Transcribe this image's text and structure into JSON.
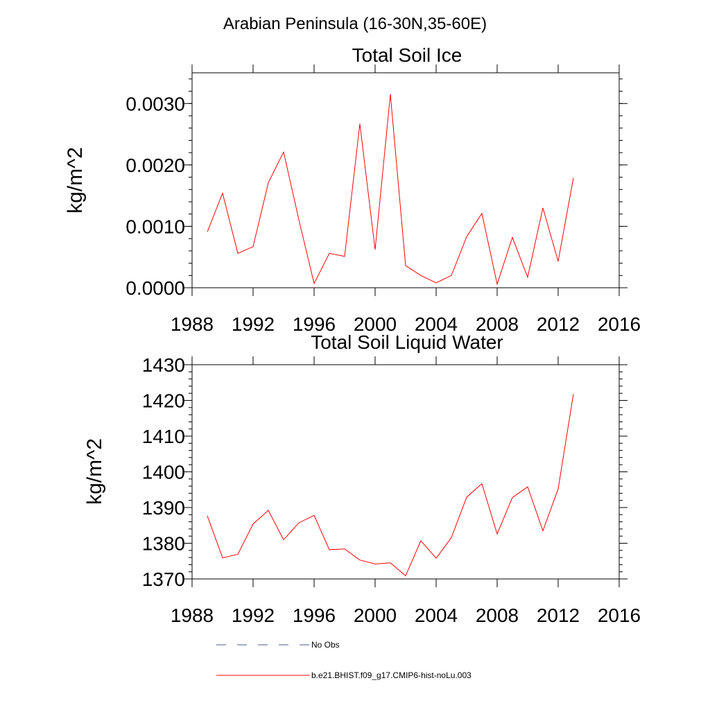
{
  "page_title": "Arabian Peninsula (16-30N,35-60E)",
  "colors": {
    "series": "#ff0000",
    "obs": "#4a5a8a",
    "axis": "#000000"
  },
  "chart_data": [
    {
      "type": "line",
      "title": "Total Soil Ice",
      "ylabel": "kg/m^2",
      "xlim": [
        1988,
        2016
      ],
      "ylim": [
        0,
        0.0035
      ],
      "xticks": [
        1988,
        1992,
        1996,
        2000,
        2004,
        2008,
        2012,
        2016
      ],
      "yticks": [
        0,
        0.001,
        0.002,
        0.003
      ],
      "ytick_labels": [
        "0.0000",
        "0.0010",
        "0.0020",
        "0.0030"
      ],
      "x": [
        1989,
        1990,
        1991,
        1992,
        1993,
        1994,
        1995,
        1996,
        1997,
        1998,
        1999,
        2000,
        2001,
        2002,
        2003,
        2004,
        2005,
        2006,
        2007,
        2008,
        2009,
        2010,
        2011,
        2012,
        2013
      ],
      "series": [
        {
          "name": "b.e21.BHIST.f09_g17.CMIP6-hist-noLu.003",
          "values": [
            0.00091,
            0.00154,
            0.00056,
            0.00067,
            0.00171,
            0.00221,
            0.00111,
            7e-05,
            0.00056,
            0.00051,
            0.00267,
            0.00062,
            0.00315,
            0.00036,
            0.0002,
            8e-05,
            0.0002,
            0.00083,
            0.00121,
            6e-05,
            0.00082,
            0.00017,
            0.0013,
            0.00043,
            0.00179
          ]
        }
      ]
    },
    {
      "type": "line",
      "title": "Total Soil Liquid Water",
      "ylabel": "kg/m^2",
      "xlim": [
        1988,
        2016
      ],
      "ylim": [
        1370,
        1430
      ],
      "xticks": [
        1988,
        1992,
        1996,
        2000,
        2004,
        2008,
        2012,
        2016
      ],
      "yticks": [
        1370,
        1380,
        1390,
        1400,
        1410,
        1420,
        1430
      ],
      "ytick_labels": [
        "1370",
        "1380",
        "1390",
        "1400",
        "1410",
        "1420",
        "1430"
      ],
      "x": [
        1989,
        1990,
        1991,
        1992,
        1993,
        1994,
        1995,
        1996,
        1997,
        1998,
        1999,
        2000,
        2001,
        2002,
        2003,
        2004,
        2005,
        2006,
        2007,
        2008,
        2009,
        2010,
        2011,
        2012,
        2013
      ],
      "series": [
        {
          "name": "b.e21.BHIST.f09_g17.CMIP6-hist-noLu.003",
          "values": [
            1387.7,
            1375.9,
            1376.9,
            1385.4,
            1389.2,
            1381.0,
            1385.7,
            1387.8,
            1378.2,
            1378.4,
            1375.3,
            1374.2,
            1374.5,
            1370.9,
            1380.7,
            1375.8,
            1381.6,
            1392.9,
            1396.7,
            1382.6,
            1392.8,
            1395.8,
            1383.5,
            1395.2,
            1421.8
          ]
        }
      ]
    }
  ],
  "legend": [
    {
      "label": "No Obs",
      "style": "dashed"
    },
    {
      "label": "b.e21.BHIST.f09_g17.CMIP6-hist-noLu.003",
      "style": "solid"
    }
  ]
}
